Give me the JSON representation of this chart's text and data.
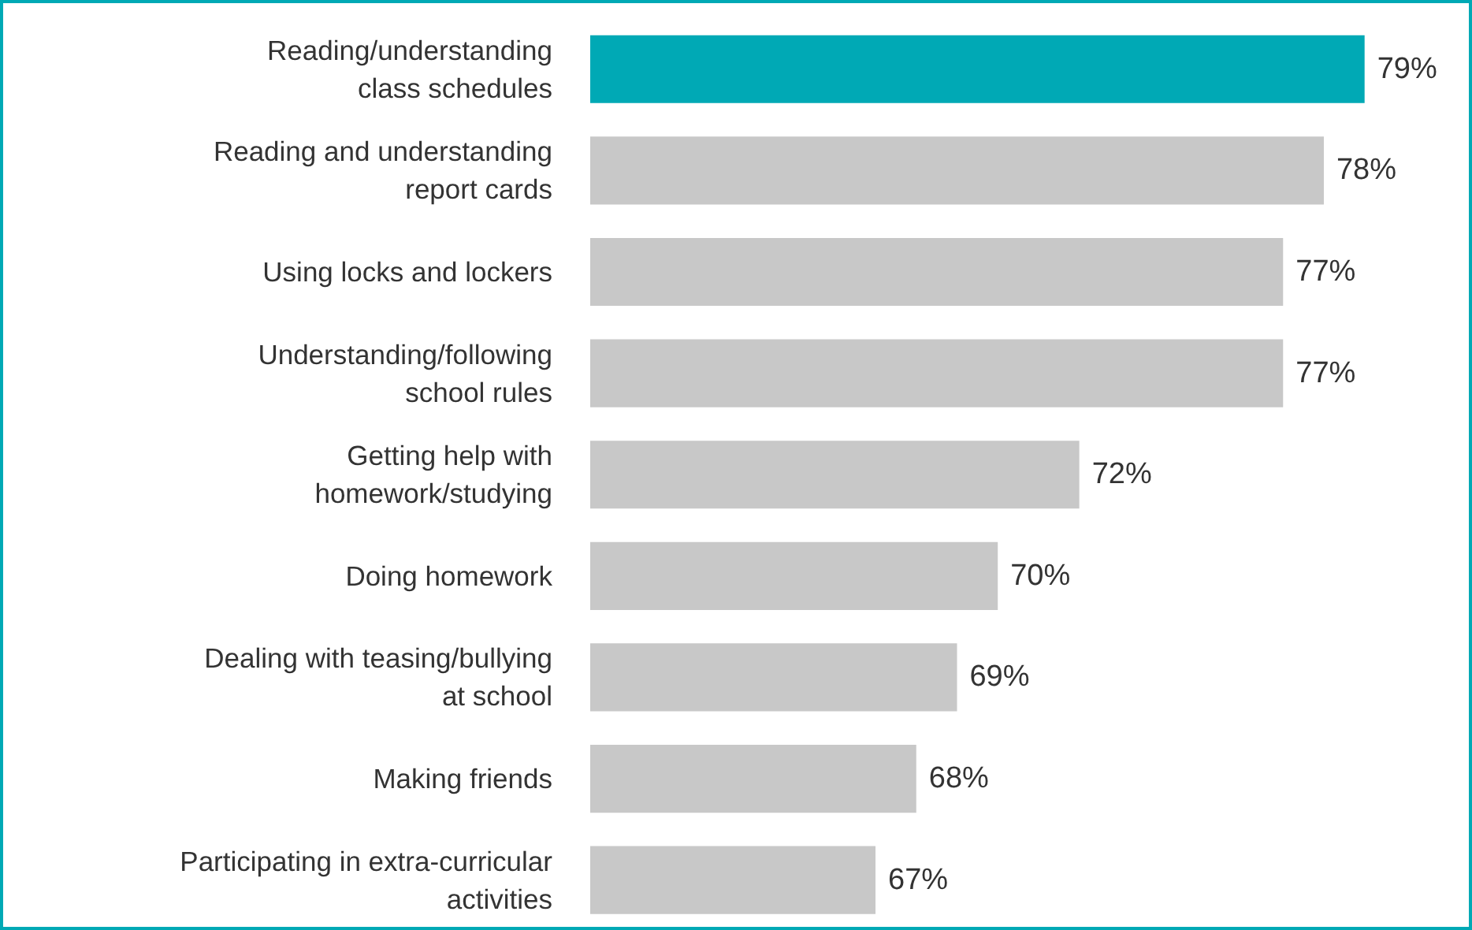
{
  "chart_data": {
    "type": "bar",
    "orientation": "horizontal",
    "categories": [
      "Reading/understanding\nclass schedules",
      "Reading and understanding\nreport cards",
      "Using locks and lockers",
      "Understanding/following\nschool rules",
      "Getting help with\nhomework/studying",
      "Doing homework",
      "Dealing with teasing/bullying\nat school",
      "Making friends",
      "Participating in extra-curricular\nactivities"
    ],
    "values": [
      79,
      78,
      77,
      77,
      72,
      70,
      69,
      68,
      67
    ],
    "colors": [
      "#00a9b5",
      "#c8c8c8",
      "#c8c8c8",
      "#c8c8c8",
      "#c8c8c8",
      "#c8c8c8",
      "#c8c8c8",
      "#c8c8c8",
      "#c8c8c8"
    ],
    "value_labels": [
      "79%",
      "78%",
      "77%",
      "77%",
      "72%",
      "70%",
      "69%",
      "68%",
      "67%"
    ],
    "xlim": [
      60,
      81.5
    ],
    "tick_labels": "y",
    "grid": false
  }
}
